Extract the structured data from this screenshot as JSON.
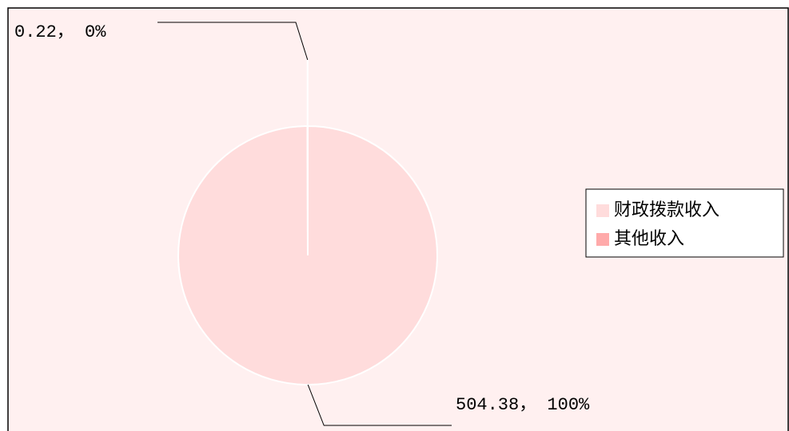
{
  "chart_data": {
    "type": "pie",
    "categories": [
      "财政拨款收入",
      "其他收入"
    ],
    "series": [
      {
        "colors": [
          "#ffdcdc",
          "#ffaaaa"
        ],
        "values": [
          504.38,
          0.22
        ],
        "value_labels": [
          "504.38， 100%",
          "0.22， 0%"
        ]
      }
    ],
    "legend": "right"
  }
}
